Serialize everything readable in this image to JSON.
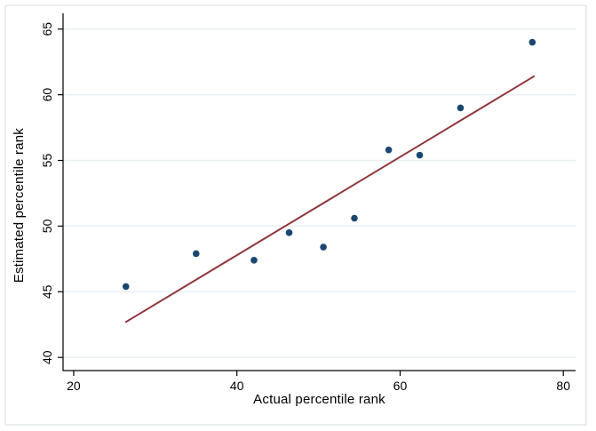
{
  "figure": {
    "background_color": "#ffffff",
    "border_color": "#d6dde0",
    "axis_color": "#000000",
    "tick_label_color": "#000000"
  },
  "chart_data": {
    "type": "scatter",
    "title": "",
    "xlabel": "Actual percentile rank",
    "ylabel": "Estimated percentile rank",
    "x_ticks": [
      20,
      40,
      60,
      80
    ],
    "y_ticks": [
      40,
      45,
      50,
      55,
      60,
      65
    ],
    "xlim": [
      18.7,
      81.5
    ],
    "ylim": [
      39.0,
      66.2
    ],
    "grid": "horizontal",
    "grid_color": "#e7eff2",
    "marker_color": "#1a476f",
    "line_color": "#90353b",
    "points": [
      [
        26.4,
        45.4
      ],
      [
        35.0,
        47.9
      ],
      [
        42.1,
        47.4
      ],
      [
        46.4,
        49.5
      ],
      [
        50.6,
        48.4
      ],
      [
        54.4,
        50.6
      ],
      [
        58.6,
        55.8
      ],
      [
        62.4,
        55.4
      ],
      [
        67.4,
        59.0
      ],
      [
        76.2,
        64.0
      ]
    ],
    "fit_line": {
      "x1": 26.4,
      "y1": 42.7,
      "x2": 76.4,
      "y2": 61.4
    },
    "legend": "none"
  }
}
